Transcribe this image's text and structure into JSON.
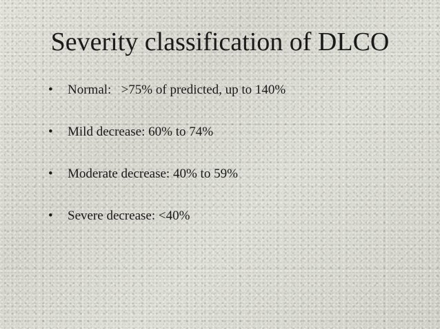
{
  "slide": {
    "title": "Severity classification of DLCO",
    "bullet_glyph": "•",
    "bullets": [
      "Normal:   >75% of predicted, up to 140%",
      "Mild decrease: 60% to 74%",
      "Moderate decrease: 40% to 59%",
      "Severe decrease: <40%"
    ]
  }
}
